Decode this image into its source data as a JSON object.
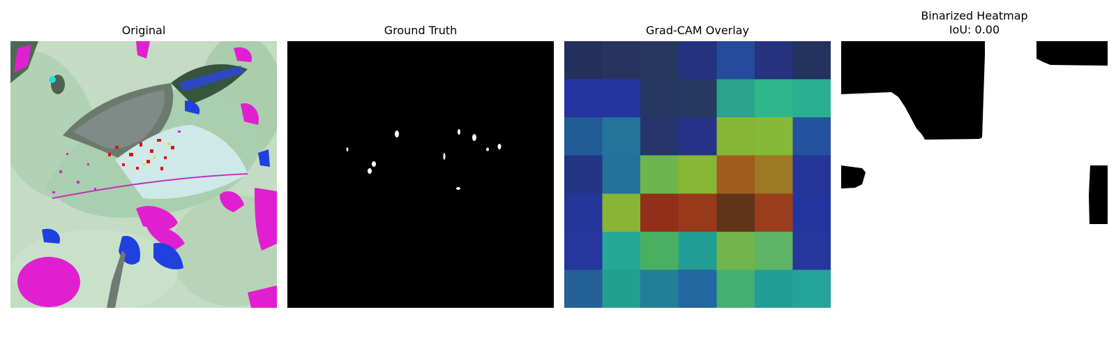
{
  "panels": [
    {
      "title": "Original"
    },
    {
      "title": "Ground Truth"
    },
    {
      "title": "Grad-CAM Overlay"
    },
    {
      "title": "Binarized Heatmap",
      "subtitle": "IoU: 0.00"
    }
  ],
  "gradcam_grid": [
    [
      "#24305d",
      "#26345f",
      "#263760",
      "#24327f",
      "#234c9a",
      "#25327f",
      "#24325f"
    ],
    [
      "#2534a0",
      "#2535a0",
      "#253762",
      "#263a62",
      "#2aa48c",
      "#2fb68a",
      "#2ab090"
    ],
    [
      "#235b97",
      "#237499",
      "#25356c",
      "#253288",
      "#87b637",
      "#86b938",
      "#23539e"
    ],
    [
      "#253586",
      "#22729b",
      "#6db64d",
      "#88b635",
      "#a05d1d",
      "#9c7924",
      "#253598"
    ],
    [
      "#25369a",
      "#89b535",
      "#922f18",
      "#97391a",
      "#5f3418",
      "#9b3e1e",
      "#2535a0"
    ],
    [
      "#25369c",
      "#26a898",
      "#49b063",
      "#229e94",
      "#72b54a",
      "#5db565",
      "#25369c"
    ],
    [
      "#236197",
      "#22a08f",
      "#237e98",
      "#2367a1",
      "#44b071",
      "#229d95",
      "#23a39a"
    ]
  ]
}
